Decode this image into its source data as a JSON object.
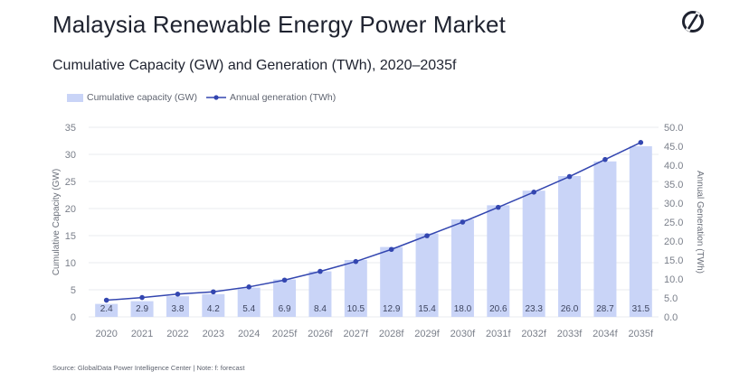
{
  "header": {
    "title": "Malaysia Renewable Energy Power Market",
    "subtitle": "Cumulative Capacity (GW) and Generation (TWh), 2020–2035f"
  },
  "legend": {
    "capacity": "Cumulative capacity (GW)",
    "generation": "Annual generation (TWh)"
  },
  "footer": {
    "source": "Source: GlobalData Power Intelligence Center | Note: f: forecast"
  },
  "colors": {
    "bar": "#c9d4f7",
    "line": "#3346b0",
    "grid": "#e3e5ea"
  },
  "chart_data": {
    "type": "bar",
    "categories": [
      "2020",
      "2021",
      "2022",
      "2023",
      "2024",
      "2025f",
      "2026f",
      "2027f",
      "2028f",
      "2029f",
      "2030f",
      "2031f",
      "2032f",
      "2033f",
      "2034f",
      "2035f"
    ],
    "series": [
      {
        "name": "Cumulative capacity (GW)",
        "type": "bar",
        "axis": "left",
        "values": [
          2.4,
          2.9,
          3.8,
          4.2,
          5.4,
          6.9,
          8.4,
          10.5,
          12.9,
          15.4,
          18.0,
          20.6,
          23.3,
          26.0,
          28.7,
          31.5
        ],
        "labels": [
          "2.4",
          "2.9",
          "3.8",
          "4.2",
          "5.4",
          "6.9",
          "8.4",
          "10.5",
          "12.9",
          "15.4",
          "18.0",
          "20.6",
          "23.3",
          "26.0",
          "28.7",
          "31.5"
        ]
      },
      {
        "name": "Annual generation (TWh)",
        "type": "line",
        "axis": "right",
        "values": [
          4.4,
          5.1,
          6.0,
          6.6,
          7.9,
          9.7,
          12.0,
          14.6,
          17.8,
          21.4,
          25.0,
          28.9,
          32.9,
          37.0,
          41.5,
          46.0
        ]
      }
    ],
    "ylabel": "Cumulative Capacity (GW)",
    "ylabel_right": "Annual Generation (TWh)",
    "ylim": [
      0,
      35
    ],
    "ylim_right": [
      0,
      50
    ],
    "yticks": [
      "0",
      "5",
      "10",
      "15",
      "20",
      "25",
      "30",
      "35"
    ],
    "yticks_right": [
      "0.0",
      "5.0",
      "10.0",
      "15.0",
      "20.0",
      "25.0",
      "30.0",
      "35.0",
      "40.0",
      "45.0",
      "50.0"
    ],
    "grid": true,
    "legend_position": "top-left"
  }
}
